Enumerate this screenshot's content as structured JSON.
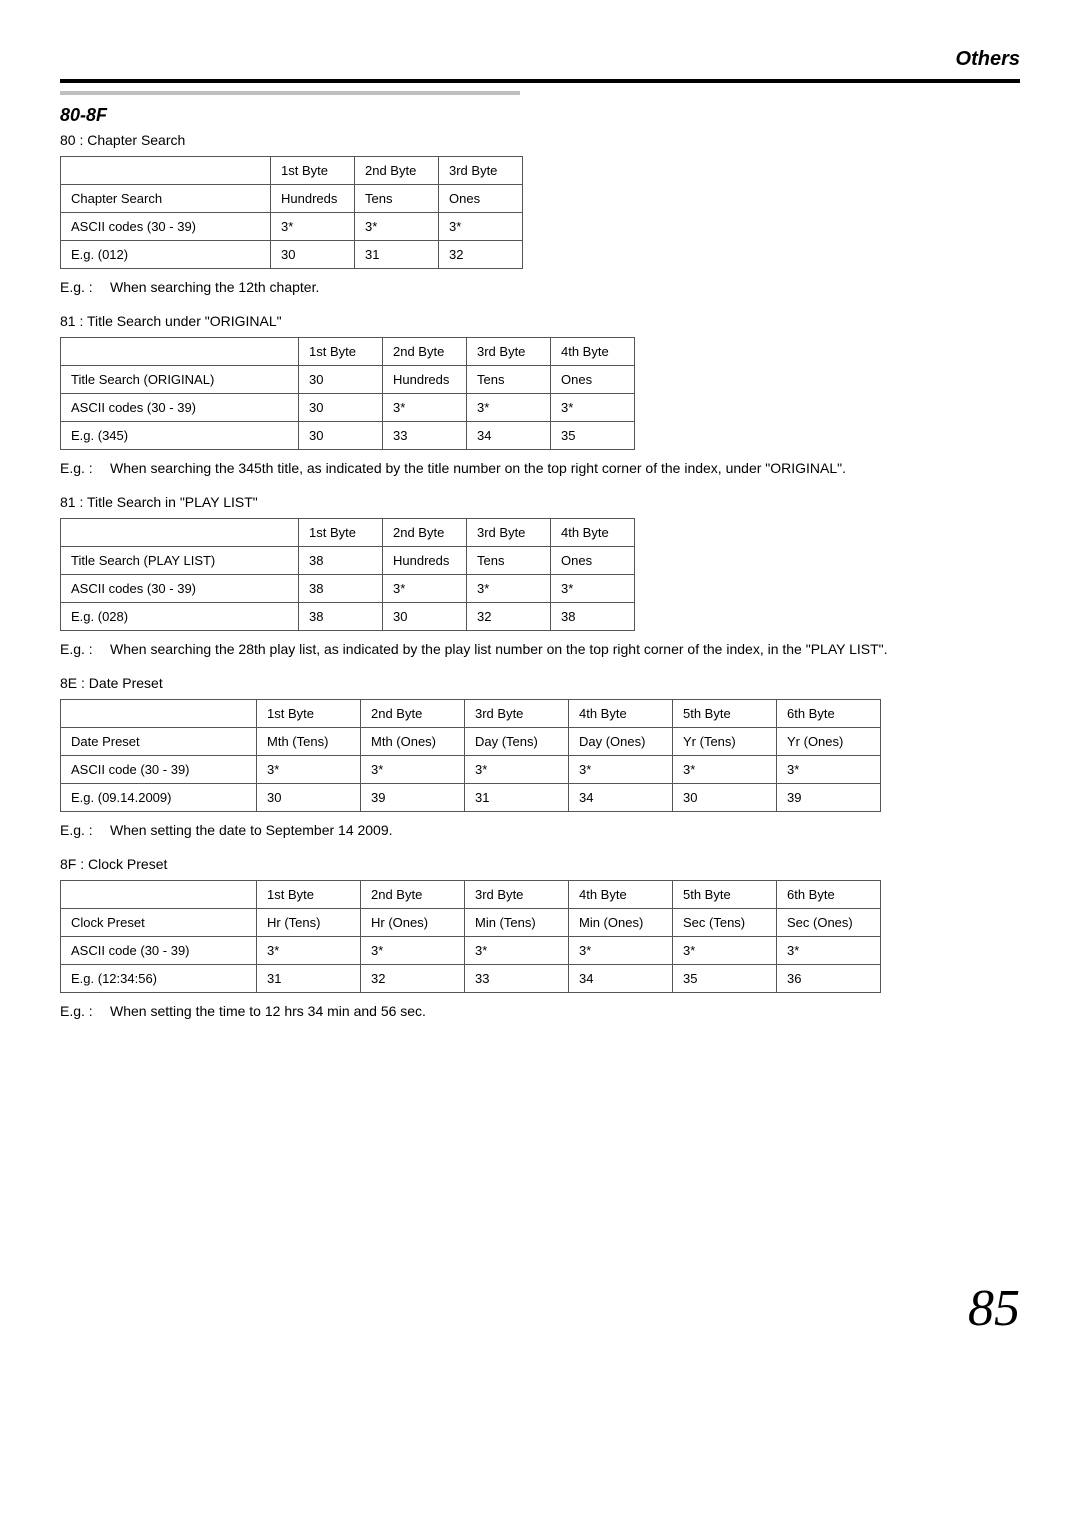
{
  "header": {
    "others": "Others"
  },
  "section_heading": "80-8F",
  "sections": [
    {
      "code_line": "80 :  Chapter Search",
      "table": {
        "label_class": "col-label",
        "headers": [
          "",
          "1st Byte",
          "2nd Byte",
          "3rd Byte"
        ],
        "rows": [
          [
            "Chapter Search",
            "Hundreds",
            "Tens",
            "Ones"
          ],
          [
            "ASCII codes (30 - 39)",
            "3*",
            "3*",
            "3*"
          ],
          [
            "E.g. (012)",
            "30",
            "31",
            "32"
          ]
        ]
      },
      "eg": {
        "prefix": "E.g. :",
        "text": "When searching the 12th chapter."
      }
    },
    {
      "code_line": "81 :  Title Search under \"ORIGINAL\"",
      "table": {
        "label_class": "col-label-wide",
        "headers": [
          "",
          "1st Byte",
          "2nd Byte",
          "3rd Byte",
          "4th Byte"
        ],
        "rows": [
          [
            "Title Search (ORIGINAL)",
            "30",
            "Hundreds",
            "Tens",
            "Ones"
          ],
          [
            "ASCII codes (30 - 39)",
            "30",
            "3*",
            "3*",
            "3*"
          ],
          [
            "E.g. (345)",
            "30",
            "33",
            "34",
            "35"
          ]
        ]
      },
      "eg": {
        "prefix": "E.g. :",
        "text": "When searching the 345th title, as indicated by the title number on the top right corner of the index, under \"ORIGINAL\"."
      }
    },
    {
      "code_line": "81 :  Title Search in \"PLAY LIST\"",
      "table": {
        "label_class": "col-label-wide",
        "headers": [
          "",
          "1st Byte",
          "2nd Byte",
          "3rd Byte",
          "4th Byte"
        ],
        "rows": [
          [
            "Title Search (PLAY LIST)",
            "38",
            "Hundreds",
            "Tens",
            "Ones"
          ],
          [
            "ASCII codes (30 - 39)",
            "38",
            "3*",
            "3*",
            "3*"
          ],
          [
            "E.g. (028)",
            "38",
            "30",
            "32",
            "38"
          ]
        ]
      },
      "eg": {
        "prefix": "E.g. :",
        "text": "When searching the 28th play list, as indicated by the play list number on the top right corner of the index, in the \"PLAY LIST\"."
      }
    },
    {
      "code_line": "8E :  Date Preset",
      "table": {
        "class": "t6",
        "label_class": "col-label",
        "headers": [
          "",
          "1st Byte",
          "2nd Byte",
          "3rd Byte",
          "4th Byte",
          "5th Byte",
          "6th Byte"
        ],
        "rows": [
          [
            "Date Preset",
            "Mth (Tens)",
            "Mth (Ones)",
            "Day (Tens)",
            "Day (Ones)",
            "Yr (Tens)",
            "Yr (Ones)"
          ],
          [
            "ASCII code (30 - 39)",
            "3*",
            "3*",
            "3*",
            "3*",
            "3*",
            "3*"
          ],
          [
            "E.g. (09.14.2009)",
            "30",
            "39",
            "31",
            "34",
            "30",
            "39"
          ]
        ]
      },
      "eg": {
        "prefix": "E.g. :",
        "text": "When setting the date to September 14 2009."
      }
    },
    {
      "code_line": "8F :  Clock Preset",
      "table": {
        "class": "t6",
        "label_class": "col-label",
        "headers": [
          "",
          "1st Byte",
          "2nd Byte",
          "3rd Byte",
          "4th Byte",
          "5th Byte",
          "6th Byte"
        ],
        "rows": [
          [
            "Clock Preset",
            "Hr (Tens)",
            "Hr (Ones)",
            "Min (Tens)",
            "Min (Ones)",
            "Sec (Tens)",
            "Sec (Ones)"
          ],
          [
            "ASCII code (30 - 39)",
            "3*",
            "3*",
            "3*",
            "3*",
            "3*",
            "3*"
          ],
          [
            "E.g. (12:34:56)",
            "31",
            "32",
            "33",
            "34",
            "35",
            "36"
          ]
        ]
      },
      "eg": {
        "prefix": "E.g. :",
        "text": "When setting the time to 12 hrs 34 min and 56 sec."
      }
    }
  ],
  "page_number": "85"
}
